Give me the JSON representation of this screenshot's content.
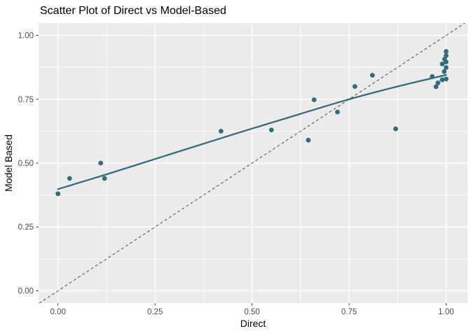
{
  "chart_data": {
    "type": "scatter",
    "title": "Scatter Plot of Direct vs Model-Based",
    "xlabel": "Direct",
    "ylabel": "Model Based",
    "xlim": [
      -0.05,
      1.055
    ],
    "ylim": [
      -0.048,
      1.048
    ],
    "x_ticks": [
      0,
      0.25,
      0.5,
      0.75,
      1
    ],
    "x_tick_labels": [
      "0.00",
      "0.25",
      "0.50",
      "0.75",
      "1.00"
    ],
    "y_ticks": [
      0,
      0.25,
      0.5,
      0.75,
      1
    ],
    "y_tick_labels": [
      "0.00",
      "0.25",
      "0.50",
      "0.75",
      "1.00"
    ],
    "minor_gridlines_x": [
      0.125,
      0.375,
      0.625,
      0.875
    ],
    "minor_gridlines_y": [
      0.125,
      0.375,
      0.625,
      0.875
    ],
    "grid": "major and minor, white on gray panel",
    "legend_position": "none",
    "points": [
      [
        0.0,
        0.38
      ],
      [
        0.03,
        0.44
      ],
      [
        0.11,
        0.5
      ],
      [
        0.12,
        0.44
      ],
      [
        0.42,
        0.625
      ],
      [
        0.55,
        0.63
      ],
      [
        0.645,
        0.59
      ],
      [
        0.66,
        0.748
      ],
      [
        0.72,
        0.7
      ],
      [
        0.765,
        0.8
      ],
      [
        0.81,
        0.844
      ],
      [
        0.87,
        0.634
      ],
      [
        0.964,
        0.839
      ],
      [
        0.974,
        0.799
      ],
      [
        0.979,
        0.814
      ],
      [
        0.99,
        0.826
      ],
      [
        1.0,
        0.829
      ],
      [
        0.995,
        0.858
      ],
      [
        1.0,
        0.874
      ],
      [
        0.99,
        0.888
      ],
      [
        1.0,
        0.896
      ],
      [
        0.996,
        0.907
      ],
      [
        1.0,
        0.921
      ],
      [
        1.0,
        0.937
      ]
    ],
    "smooth_line": {
      "name": "loess-fit-line",
      "points": [
        [
          0,
          0.398
        ],
        [
          0.125,
          0.456
        ],
        [
          0.25,
          0.516
        ],
        [
          0.375,
          0.576
        ],
        [
          0.5,
          0.635
        ],
        [
          0.625,
          0.693
        ],
        [
          0.75,
          0.75
        ],
        [
          0.875,
          0.8
        ],
        [
          1.0,
          0.845
        ]
      ]
    },
    "identity_line": {
      "name": "y-equals-x-dashed-line",
      "points": [
        [
          -0.06,
          -0.06
        ],
        [
          1.07,
          1.07
        ]
      ]
    },
    "colors": {
      "point": "#2d6e7d",
      "fit_line": "#2d6e7d",
      "identity_line": "#4a4a4a",
      "panel_bg": "#ebebeb",
      "grid": "#ffffff",
      "tick_label": "#4d4d4d",
      "tick_mark": "#333333",
      "axis_title": "#000000",
      "title": "#000000"
    }
  }
}
